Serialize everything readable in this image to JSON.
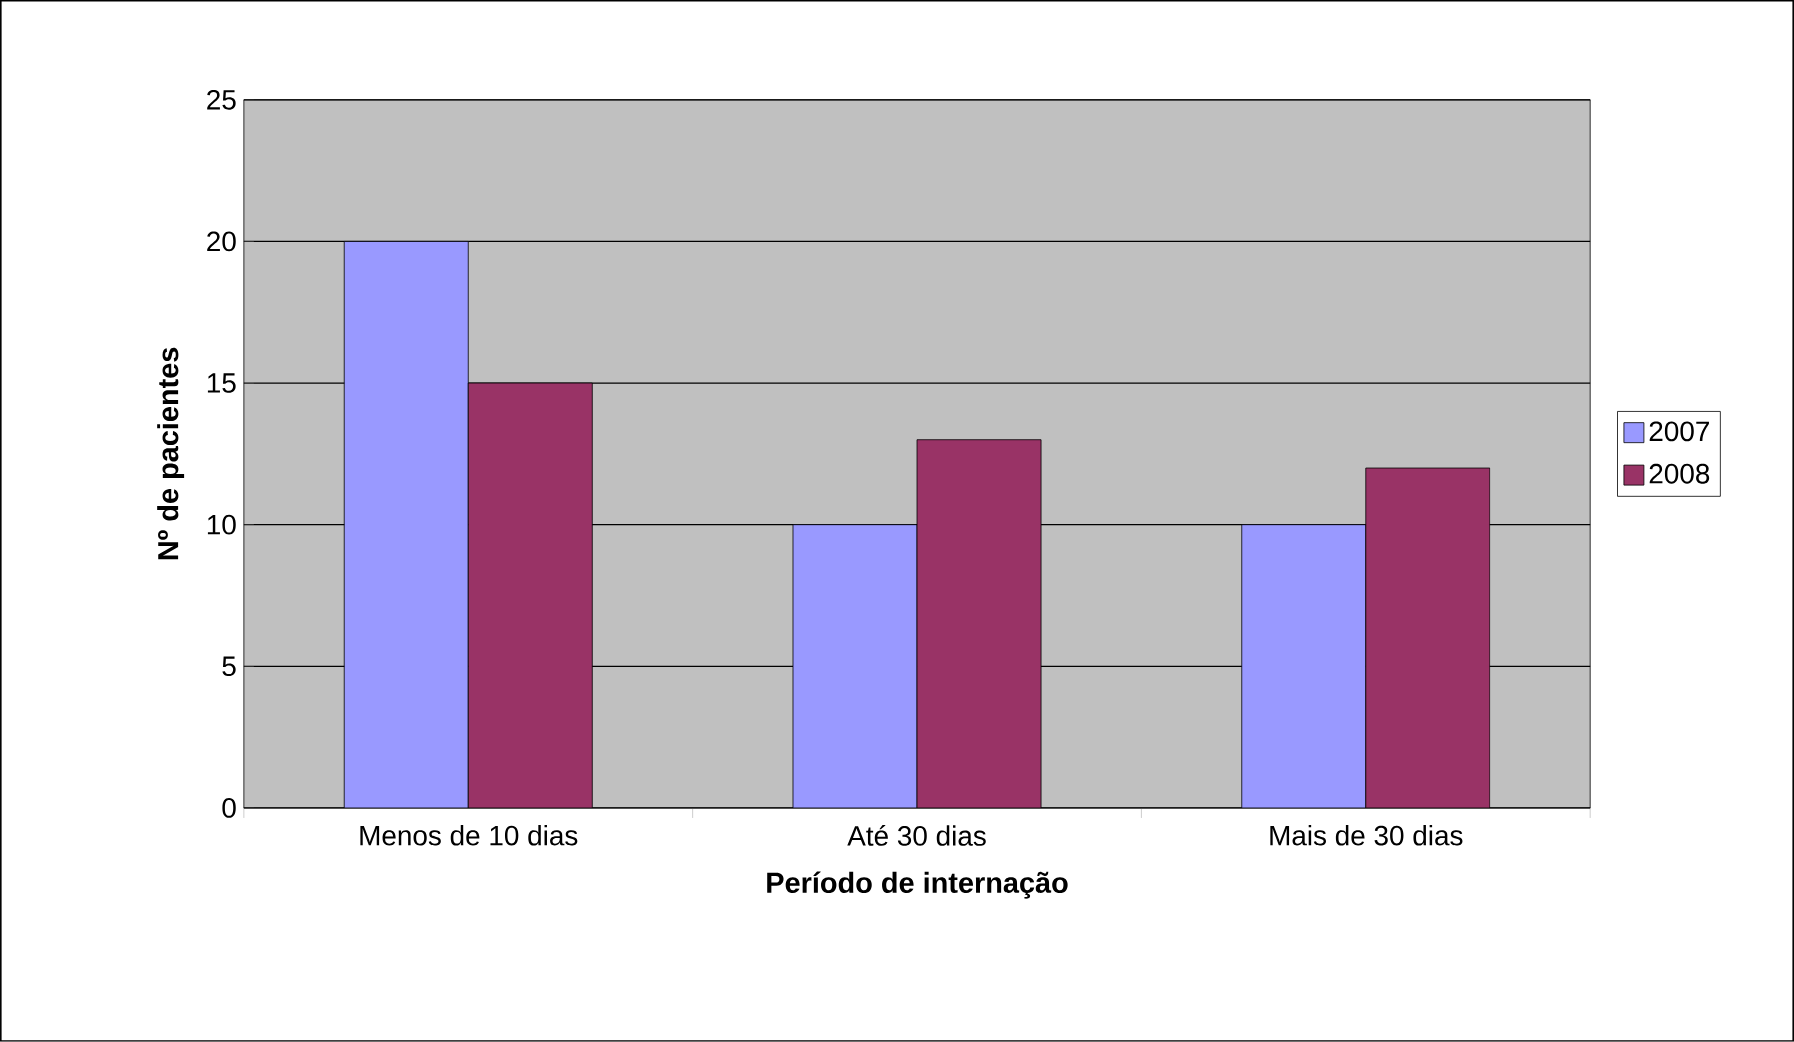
{
  "chart_data": {
    "type": "bar",
    "xlabel": "Período de internação",
    "ylabel": "Nº de pacientes",
    "categories": [
      "Menos de 10 dias",
      "Até 30 dias",
      "Mais de 30 dias"
    ],
    "series": [
      {
        "name": "2007",
        "color": "#9999ff",
        "values": [
          20,
          10,
          10
        ]
      },
      {
        "name": "2008",
        "color": "#993366",
        "values": [
          15,
          13,
          12
        ]
      }
    ],
    "ylim": [
      0,
      25
    ],
    "yticks": [
      0,
      5,
      10,
      15,
      20,
      25
    ],
    "grid": "y",
    "legend": "right"
  }
}
